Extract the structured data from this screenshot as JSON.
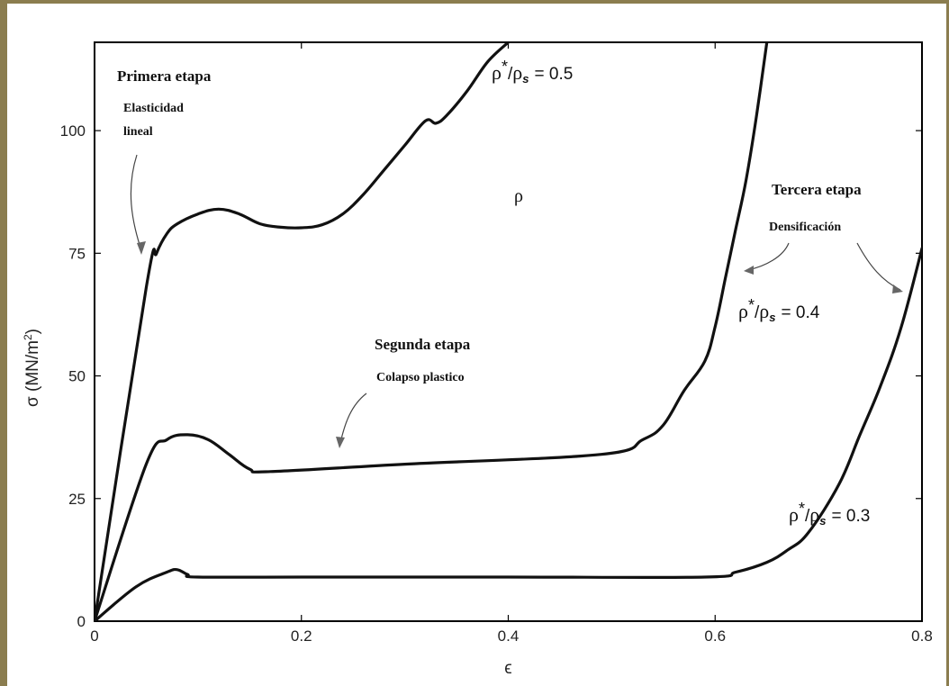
{
  "chart_data": {
    "type": "line",
    "xlabel": "ϵ",
    "ylabel_main": "σ (MN/m",
    "ylabel_sup": "2",
    "ylabel_close": ")",
    "xlim": [
      0,
      0.8
    ],
    "ylim": [
      0,
      118
    ],
    "xticks": [
      0,
      0.2,
      0.4,
      0.6,
      0.8
    ],
    "xtick_labels": [
      "0",
      "0.2",
      "0.4",
      "0.6",
      "0.8"
    ],
    "yticks": [
      0,
      25,
      50,
      75,
      100
    ],
    "ytick_labels": [
      "0",
      "25",
      "50",
      "75",
      "100"
    ],
    "grid": false,
    "series": [
      {
        "label_prefix": "ρ",
        "label_star": "*",
        "label_slash": "/",
        "label_rho_s": "ρ",
        "label_sub": "s",
        "label_value": "= 0.5",
        "x": [
          0,
          0.05,
          0.06,
          0.07,
          0.08,
          0.1,
          0.12,
          0.14,
          0.16,
          0.18,
          0.2,
          0.22,
          0.24,
          0.26,
          0.28,
          0.3,
          0.32,
          0.33,
          0.34,
          0.36,
          0.38,
          0.4
        ],
        "y": [
          0,
          68,
          75,
          79,
          81,
          83,
          84,
          83,
          81,
          80.3,
          80.2,
          80.8,
          83,
          87,
          92,
          97,
          102,
          101.5,
          103,
          108,
          114,
          118
        ]
      },
      {
        "label_prefix": "ρ",
        "label_star": "*",
        "label_slash": "/",
        "label_rho_s": "ρ",
        "label_sub": "s",
        "label_value": "= 0.4",
        "x": [
          0,
          0.05,
          0.07,
          0.09,
          0.11,
          0.13,
          0.15,
          0.17,
          0.3,
          0.49,
          0.53,
          0.55,
          0.57,
          0.59,
          0.6,
          0.61,
          0.62,
          0.63,
          0.64,
          0.65
        ],
        "y": [
          0,
          32,
          37,
          38,
          37,
          34,
          31,
          30.5,
          32,
          34,
          37,
          40,
          47,
          53,
          60,
          70,
          80,
          90,
          103,
          118
        ],
        "note": "curve approximated"
      },
      {
        "label_prefix": "ρ",
        "label_star": "*",
        "label_slash": "/",
        "label_rho_s": "ρ",
        "label_sub": "s",
        "label_value": "= 0.3",
        "x": [
          0,
          0.04,
          0.07,
          0.08,
          0.09,
          0.1,
          0.2,
          0.4,
          0.59,
          0.62,
          0.65,
          0.67,
          0.69,
          0.72,
          0.74,
          0.76,
          0.78,
          0.8
        ],
        "y": [
          0,
          7,
          10,
          10.5,
          9.5,
          9,
          9,
          9,
          9,
          10,
          12,
          14.5,
          18,
          28,
          38,
          48,
          60,
          76
        ]
      }
    ],
    "annotations": [
      {
        "id": "primera",
        "title": "Primera etapa",
        "subtitle_line1": "Elasticidad",
        "subtitle_line2": "lineal"
      },
      {
        "id": "segunda",
        "title": "Segunda etapa",
        "subtitle_line1": "Colapso plastico"
      },
      {
        "id": "tercera",
        "title": "Tercera etapa",
        "subtitle_line1": "Densificación"
      },
      {
        "id": "rho",
        "text": "ρ"
      }
    ]
  }
}
